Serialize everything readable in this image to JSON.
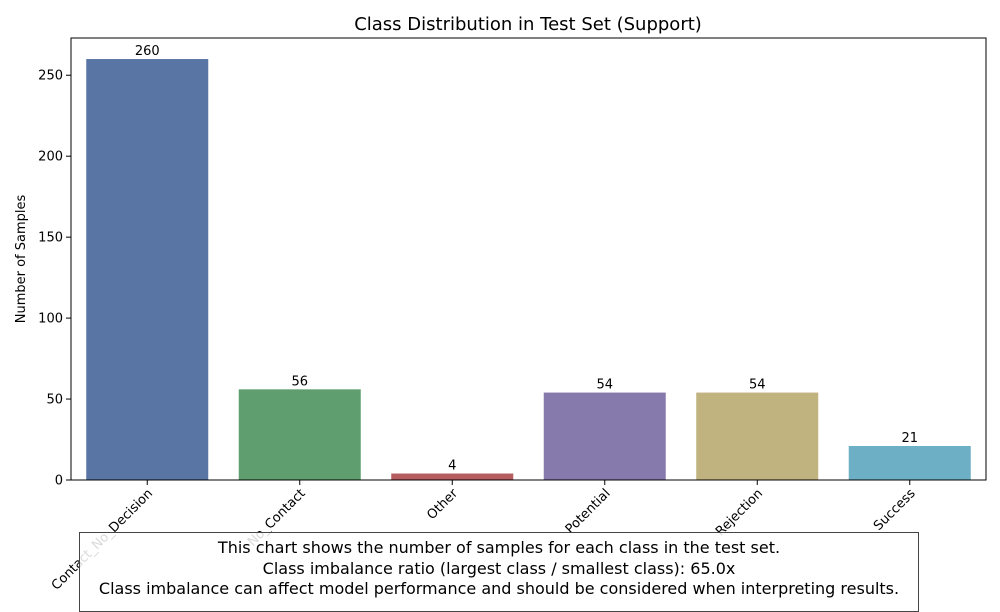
{
  "chart_data": {
    "type": "bar",
    "title": "Class Distribution in Test Set (Support)",
    "xlabel": "",
    "ylabel": "Number of Samples",
    "categories": [
      "Contact_No_Decision",
      "No_Contact",
      "Other",
      "Potential",
      "Rejection",
      "Success"
    ],
    "values": [
      260,
      56,
      4,
      54,
      54,
      21
    ],
    "data_labels": [
      "260",
      "56",
      "4",
      "54",
      "54",
      "21"
    ],
    "colors": [
      "#5875a4",
      "#5f9e6e",
      "#b55d60",
      "#857aab",
      "#c1b37f",
      "#6dafc5"
    ],
    "ylim": [
      0,
      273
    ],
    "yticks": [
      0,
      50,
      100,
      150,
      200,
      250
    ],
    "grid": false,
    "legend": "none"
  },
  "caption": {
    "line1": "This chart shows the number of samples for each class in the test set.",
    "line2": "Class imbalance ratio (largest class / smallest class): 65.0x",
    "line3": "Class imbalance can affect model performance and should be considered when interpreting results."
  }
}
